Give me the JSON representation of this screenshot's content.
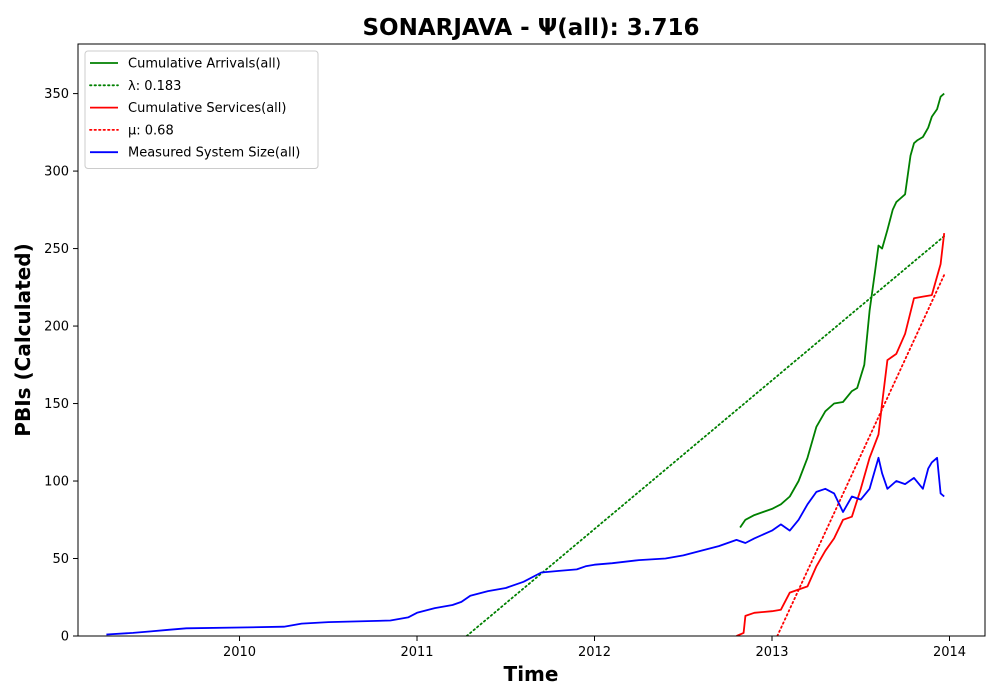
{
  "chart_data": {
    "type": "line",
    "title": "SONARJAVA -  Ψ(all): 3.716",
    "xlabel": "Time",
    "ylabel": "PBIs (Calculated)",
    "xlim": [
      2009.09,
      2014.2
    ],
    "ylim": [
      0,
      382
    ],
    "x_ticks": [
      2010,
      2011,
      2012,
      2013,
      2014
    ],
    "x_tick_labels": [
      "2010",
      "2011",
      "2012",
      "2013",
      "2014"
    ],
    "y_ticks": [
      0,
      50,
      100,
      150,
      200,
      250,
      300,
      350
    ],
    "y_tick_labels": [
      "0",
      "50",
      "100",
      "150",
      "200",
      "250",
      "300",
      "350"
    ],
    "grid": false,
    "legend_position": "top-left",
    "series": [
      {
        "name": "Cumulative Arrivals(all)",
        "color": "#008000",
        "style": "solid",
        "x": [
          2012.82,
          2012.85,
          2012.9,
          2012.95,
          2013.0,
          2013.05,
          2013.1,
          2013.15,
          2013.2,
          2013.25,
          2013.3,
          2013.35,
          2013.4,
          2013.45,
          2013.48,
          2013.52,
          2013.55,
          2013.58,
          2013.6,
          2013.62,
          2013.65,
          2013.68,
          2013.7,
          2013.72,
          2013.75,
          2013.78,
          2013.8,
          2013.82,
          2013.85,
          2013.88,
          2013.9,
          2013.93,
          2013.95,
          2013.97
        ],
        "y": [
          70,
          75,
          78,
          80,
          82,
          85,
          90,
          100,
          115,
          135,
          145,
          150,
          151,
          158,
          160,
          175,
          210,
          235,
          252,
          250,
          262,
          275,
          280,
          282,
          285,
          310,
          318,
          320,
          322,
          328,
          335,
          340,
          348,
          350
        ]
      },
      {
        "name": "λ: 0.183",
        "color": "#008000",
        "style": "dotted",
        "x": [
          2011.28,
          2013.97
        ],
        "y": [
          0,
          258
        ]
      },
      {
        "name": "Cumulative Services(all)",
        "color": "#ff0000",
        "style": "solid",
        "x": [
          2012.8,
          2012.84,
          2012.85,
          2012.9,
          2013.0,
          2013.05,
          2013.1,
          2013.2,
          2013.25,
          2013.3,
          2013.35,
          2013.4,
          2013.45,
          2013.5,
          2013.55,
          2013.6,
          2013.62,
          2013.65,
          2013.7,
          2013.75,
          2013.8,
          2013.85,
          2013.9,
          2013.92,
          2013.95,
          2013.97
        ],
        "y": [
          0,
          2,
          13,
          15,
          16,
          17,
          28,
          32,
          45,
          55,
          63,
          75,
          77,
          95,
          115,
          130,
          150,
          178,
          182,
          195,
          218,
          219,
          220,
          228,
          240,
          260
        ]
      },
      {
        "name": "μ: 0.68",
        "color": "#ff0000",
        "style": "dotted",
        "x": [
          2013.03,
          2013.97
        ],
        "y": [
          0,
          233
        ]
      },
      {
        "name": "Measured System Size(all)",
        "color": "#0000ff",
        "style": "solid",
        "x": [
          2009.25,
          2009.4,
          2009.5,
          2009.6,
          2009.7,
          2010.0,
          2010.25,
          2010.35,
          2010.5,
          2010.85,
          2010.95,
          2011.0,
          2011.1,
          2011.2,
          2011.25,
          2011.3,
          2011.4,
          2011.5,
          2011.6,
          2011.7,
          2011.8,
          2011.9,
          2011.95,
          2012.0,
          2012.1,
          2012.25,
          2012.4,
          2012.5,
          2012.6,
          2012.7,
          2012.8,
          2012.85,
          2012.9,
          2013.0,
          2013.05,
          2013.1,
          2013.15,
          2013.2,
          2013.25,
          2013.3,
          2013.35,
          2013.4,
          2013.45,
          2013.5,
          2013.55,
          2013.6,
          2013.62,
          2013.65,
          2013.7,
          2013.75,
          2013.8,
          2013.85,
          2013.88,
          2013.9,
          2013.93,
          2013.95,
          2013.97
        ],
        "y": [
          1,
          2,
          3,
          4,
          5,
          5.5,
          6,
          8,
          9,
          10,
          12,
          15,
          18,
          20,
          22,
          26,
          29,
          31,
          35,
          41,
          42,
          43,
          45,
          46,
          47,
          49,
          50,
          52,
          55,
          58,
          62,
          60,
          63,
          68,
          72,
          68,
          75,
          85,
          93,
          95,
          92,
          80,
          90,
          88,
          95,
          115,
          105,
          95,
          100,
          98,
          102,
          95,
          108,
          112,
          115,
          92,
          90
        ]
      }
    ]
  }
}
